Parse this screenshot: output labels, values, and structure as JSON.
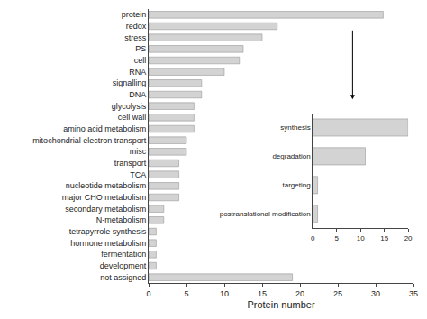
{
  "chart_data": [
    {
      "type": "bar",
      "orientation": "horizontal",
      "xlabel": "Protein number",
      "categories": [
        "protein",
        "redox",
        "stress",
        "PS",
        "cell",
        "RNA",
        "signalling",
        "DNA",
        "glycolysis",
        "cell wall",
        "amino acid metabolism",
        "mitochondrial electron transport",
        "misc",
        "transport",
        "TCA",
        "nucleotide metabolism",
        "major CHO metabolism",
        "secondary metabolism",
        "N-metabolism",
        "tetrapyrrole synthesis",
        "hormone metabolism",
        "fermentation",
        "development",
        "not assigned"
      ],
      "values": [
        31,
        17,
        15,
        12.5,
        12,
        10,
        7,
        7,
        6,
        6,
        6,
        5,
        5,
        4,
        4,
        4,
        4,
        2,
        2,
        1,
        1,
        1,
        1,
        19
      ],
      "color": "#d3d3d3",
      "xlim": [
        0,
        35
      ],
      "xticks": [
        0,
        5,
        10,
        15,
        20,
        25,
        30,
        35
      ],
      "grid": false
    },
    {
      "type": "bar",
      "orientation": "horizontal",
      "categories": [
        "synthesis",
        "degradation",
        "targeting",
        "postranslational modification"
      ],
      "values": [
        20,
        11,
        1,
        1
      ],
      "color": "#d3d3d3",
      "xlim": [
        0,
        20
      ],
      "xticks": [
        0,
        5,
        10,
        15,
        20
      ],
      "grid": false
    }
  ]
}
